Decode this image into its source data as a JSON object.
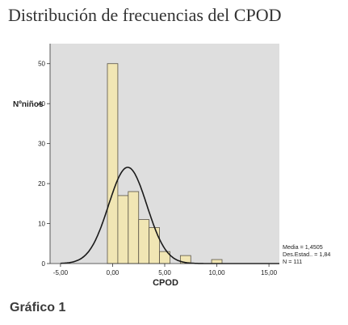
{
  "header": {
    "title": "Distribución de frecuencias del CPOD"
  },
  "caption": {
    "text": "Gráfico 1"
  },
  "colors": {
    "plot_bg": "#dedede",
    "bar_fill": "#f1e6b4",
    "bar_stroke": "#5a5446",
    "curve": "#1a1a1a"
  },
  "chart_data": {
    "type": "bar",
    "xlabel": "CPOD",
    "ylabel": "Nºniños",
    "xlim": [
      -6,
      16
    ],
    "ylim": [
      0,
      55
    ],
    "xticks": [
      "-5,00",
      "0,00",
      "5,00",
      "10,00",
      "15,00"
    ],
    "xtick_values": [
      -5,
      0,
      5,
      10,
      15
    ],
    "yticks": [
      "0",
      "10",
      "20",
      "30",
      "40",
      "50"
    ],
    "ytick_values": [
      0,
      10,
      20,
      30,
      40,
      50
    ],
    "bins": [
      {
        "x0": -0.5,
        "x1": 0.5,
        "count": 50
      },
      {
        "x0": 0.5,
        "x1": 1.5,
        "count": 17
      },
      {
        "x0": 1.5,
        "x1": 2.5,
        "count": 18
      },
      {
        "x0": 2.5,
        "x1": 3.5,
        "count": 11
      },
      {
        "x0": 3.5,
        "x1": 4.5,
        "count": 9
      },
      {
        "x0": 4.5,
        "x1": 5.5,
        "count": 3
      },
      {
        "x0": 5.5,
        "x1": 6.5,
        "count": 0
      },
      {
        "x0": 6.5,
        "x1": 7.5,
        "count": 2
      },
      {
        "x0": 9.5,
        "x1": 10.5,
        "count": 1
      }
    ],
    "normal_curve": {
      "mean": 1.4505,
      "sd": 1.84,
      "n": 111,
      "bin_width": 1
    },
    "stats_lines": [
      "Media = 1,4505",
      "Des.Estad.. = 1,84",
      "N = 111"
    ]
  }
}
